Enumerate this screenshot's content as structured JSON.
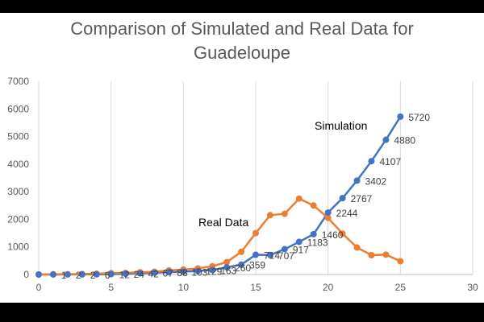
{
  "chart_data": {
    "type": "line",
    "title_line1": "Comparison of Simulated and Real Data for",
    "title_line2": "Guadeloupe",
    "xlabel": "",
    "ylabel": "",
    "xlim": [
      0,
      30
    ],
    "ylim": [
      0,
      7000
    ],
    "x_ticks": [
      "0",
      "5",
      "10",
      "15",
      "20",
      "25",
      "30"
    ],
    "y_ticks": [
      "0",
      "1000",
      "2000",
      "3000",
      "4000",
      "5000",
      "6000",
      "7000"
    ],
    "grid": "vertical",
    "series": [
      {
        "name": "Simulation",
        "color": "#4472C4",
        "x": [
          0,
          1,
          2,
          3,
          4,
          5,
          6,
          7,
          8,
          9,
          10,
          11,
          12,
          13,
          14,
          15,
          16,
          17,
          18,
          19,
          20,
          21,
          22,
          23,
          24,
          25
        ],
        "y": [
          0,
          1,
          2,
          2,
          6,
          12,
          24,
          42,
          67,
          88,
          103,
          129,
          163,
          260,
          359,
          714,
          707,
          917,
          1183,
          1460,
          2244,
          2767,
          3402,
          4107,
          4880,
          5720
        ],
        "labels": [
          "",
          "1",
          "2",
          "2",
          "6",
          "12",
          "24",
          "42",
          "67",
          "88",
          "103",
          "129",
          "163",
          "260",
          "359",
          "714",
          "707",
          "917",
          "1183",
          "1460",
          "2244",
          "2767",
          "3402",
          "4107",
          "4880",
          "5720"
        ]
      },
      {
        "name": "Real Data",
        "color": "#ED7D31",
        "x": [
          0,
          1,
          2,
          3,
          4,
          5,
          6,
          7,
          8,
          9,
          10,
          11,
          12,
          13,
          14,
          15,
          16,
          17,
          18,
          19,
          20,
          21,
          22,
          23,
          24,
          25
        ],
        "y": [
          0,
          10,
          10,
          20,
          30,
          50,
          60,
          80,
          100,
          150,
          180,
          220,
          300,
          450,
          820,
          1500,
          2150,
          2200,
          2750,
          2500,
          2050,
          1480,
          980,
          700,
          720,
          480
        ]
      }
    ]
  }
}
